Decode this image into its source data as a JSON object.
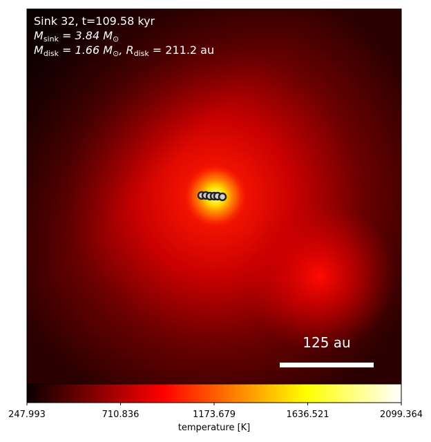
{
  "chart_data": {
    "type": "image",
    "annotation_lines": [
      [
        {
          "text": "Sink 32, t=109.58 kyr"
        }
      ],
      [
        {
          "text": "M"
        },
        {
          "sub": "sink"
        },
        {
          "text": " = 3.84 M"
        },
        {
          "sub": "⊙"
        }
      ],
      [
        {
          "text": "M"
        },
        {
          "sub": "disk"
        },
        {
          "text": " = 1.66 M"
        },
        {
          "sub": "⊙"
        },
        {
          "text": ", R"
        },
        {
          "sub": "disk"
        },
        {
          "text": " = 211.2 au"
        }
      ]
    ],
    "scale_bar_label": "125 au",
    "colorbar": {
      "label": "temperature [K]",
      "colormap": "hot",
      "lim": [
        247.993,
        2099.364
      ],
      "ticks": [
        247.993,
        710.836,
        1173.679,
        1636.521,
        2099.364
      ]
    }
  }
}
